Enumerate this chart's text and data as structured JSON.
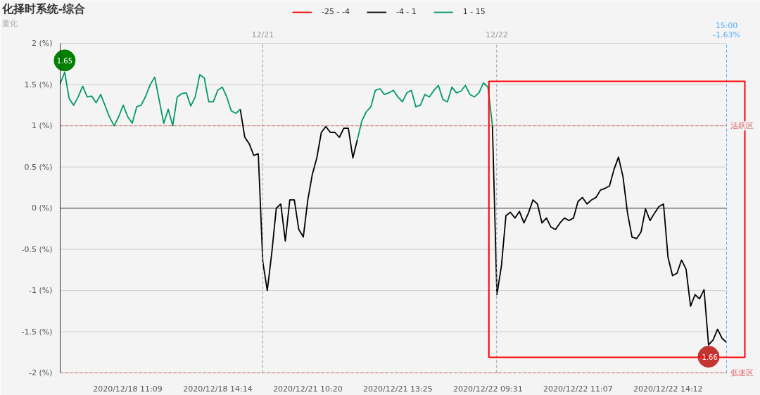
{
  "chart_data": {
    "type": "line",
    "title": "化择时系统-综合",
    "subtitle": "量化",
    "categories": [
      null,
      null,
      null,
      null,
      null,
      null,
      null,
      null,
      null,
      null,
      null,
      null,
      null,
      null,
      null,
      "2020/12/18 11:09",
      null,
      null,
      null,
      null,
      null,
      null,
      null,
      null,
      null,
      null,
      null,
      null,
      null,
      null,
      null,
      null,
      null,
      null,
      null,
      "2020/12/18 14:14",
      null,
      null,
      null,
      null,
      null,
      null,
      null,
      null,
      null,
      null,
      null,
      null,
      null,
      null,
      null,
      null,
      null,
      null,
      null,
      "2020/12/21 10:20",
      null,
      null,
      null,
      null,
      null,
      null,
      null,
      null,
      null,
      null,
      null,
      null,
      null,
      null,
      null,
      null,
      null,
      null,
      null,
      "2020/12/21 13:25",
      null,
      null,
      null,
      null,
      null,
      null,
      null,
      null,
      null,
      null,
      null,
      null,
      null,
      null,
      null,
      null,
      null,
      null,
      null,
      "2020/12/22 09:31",
      null,
      null,
      null,
      null,
      null,
      null,
      null,
      null,
      null,
      null,
      null,
      null,
      null,
      null,
      null,
      null,
      null,
      null,
      null,
      "2020/12/22 11:07",
      null,
      null,
      null,
      null,
      null,
      null,
      null,
      null,
      null,
      null,
      null,
      null,
      null,
      null,
      null,
      null,
      null,
      null,
      null,
      "2020/12/22 14:12",
      null,
      null,
      null,
      null,
      null,
      null,
      null,
      null,
      null,
      null,
      null,
      null,
      null
    ],
    "ylim": [
      -2,
      2
    ],
    "yticks": [
      {
        "value": -2,
        "label": "-2 (%)"
      },
      {
        "value": -1.5,
        "label": "-1.5 (%)"
      },
      {
        "value": -1,
        "label": "-1 (%)"
      },
      {
        "value": -0.5,
        "label": "-0.5 (%)"
      },
      {
        "value": 0,
        "label": "0 (%)"
      },
      {
        "value": 0.5,
        "label": "0.5 (%)"
      },
      {
        "value": 1,
        "label": "1 (%)"
      },
      {
        "value": 1.5,
        "label": "1.5 (%)"
      },
      {
        "value": 2,
        "label": "2 (%)"
      }
    ],
    "grid": "y",
    "legend": "top",
    "line_style": "solid",
    "series": [
      {
        "name": "-25 - -4",
        "color": "#ff0000",
        "values": [
          null,
          null,
          null,
          null,
          null,
          null,
          null,
          null,
          null,
          null,
          null,
          null,
          null,
          null,
          null,
          null,
          null,
          null,
          null,
          null,
          null,
          null,
          null,
          null,
          null,
          null,
          null,
          null,
          null,
          null,
          null,
          null,
          null,
          null,
          null,
          null,
          null,
          null,
          null,
          null,
          null,
          null,
          null,
          null,
          null,
          null,
          null,
          null,
          null,
          null,
          null,
          null,
          null,
          null,
          null,
          null,
          null,
          null,
          null,
          null,
          null,
          null,
          null,
          null,
          null,
          null,
          null,
          null,
          null,
          null,
          null,
          null,
          null,
          null,
          null,
          null,
          null,
          null,
          null,
          null,
          null,
          null,
          null,
          null,
          null,
          null,
          null,
          null,
          null,
          null,
          null,
          null,
          null,
          null,
          null,
          null,
          null,
          null,
          null,
          null,
          null,
          null,
          null,
          null,
          null,
          null,
          null,
          null,
          null,
          null,
          null,
          null,
          null,
          null,
          null,
          null,
          null,
          null,
          null,
          null,
          null,
          null,
          null,
          null,
          null,
          null,
          null,
          null,
          null,
          null,
          null,
          null,
          null,
          null,
          null,
          null,
          null,
          null,
          null,
          null,
          null,
          null,
          null,
          null,
          null,
          null,
          null,
          null,
          null
        ]
      },
      {
        "name": "-4 - 1",
        "color": "#000000",
        "values": [
          null,
          null,
          null,
          null,
          null,
          null,
          null,
          null,
          null,
          null,
          null,
          null,
          null,
          null,
          null,
          null,
          null,
          null,
          null,
          null,
          null,
          null,
          null,
          null,
          null,
          null,
          null,
          null,
          null,
          null,
          null,
          null,
          null,
          null,
          null,
          null,
          null,
          null,
          null,
          null,
          1.2,
          0.86,
          0.78,
          0.64,
          0.66,
          -0.65,
          -1.0,
          -0.54,
          0.0,
          0.05,
          -0.4,
          0.1,
          0.1,
          -0.26,
          -0.35,
          0.1,
          0.41,
          0.61,
          0.92,
          0.99,
          0.92,
          0.92,
          0.86,
          0.97,
          0.97,
          0.61,
          0.83,
          null,
          null,
          null,
          null,
          null,
          null,
          null,
          null,
          null,
          null,
          null,
          null,
          null,
          null,
          null,
          null,
          null,
          null,
          null,
          null,
          null,
          null,
          null,
          null,
          null,
          null,
          null,
          null,
          null,
          1.0,
          -1.05,
          -0.7,
          -0.09,
          -0.05,
          -0.12,
          -0.04,
          -0.18,
          -0.06,
          0.1,
          0.05,
          -0.18,
          -0.12,
          -0.23,
          -0.26,
          -0.18,
          -0.12,
          -0.15,
          -0.12,
          0.08,
          0.13,
          0.05,
          0.1,
          0.13,
          0.22,
          0.24,
          0.27,
          0.47,
          0.62,
          0.38,
          -0.06,
          -0.35,
          -0.37,
          -0.29,
          -0.01,
          -0.15,
          -0.06,
          0.02,
          0.05,
          -0.6,
          -0.82,
          -0.79,
          -0.63,
          -0.74,
          -1.19,
          -1.05,
          -1.1,
          -0.99,
          -1.66,
          -1.6,
          -1.47,
          -1.58,
          -1.63
        ]
      },
      {
        "name": "1 - 15",
        "color": "#009966",
        "values": [
          1.51,
          1.65,
          1.33,
          1.25,
          1.35,
          1.48,
          1.35,
          1.36,
          1.28,
          1.38,
          1.24,
          1.1,
          1.0,
          1.11,
          1.25,
          1.11,
          1.03,
          1.23,
          1.25,
          1.36,
          1.5,
          1.59,
          1.31,
          1.03,
          1.2,
          1.0,
          1.35,
          1.39,
          1.4,
          1.24,
          1.35,
          1.62,
          1.58,
          1.29,
          1.29,
          1.43,
          1.47,
          1.35,
          1.18,
          1.15,
          1.2,
          null,
          null,
          null,
          null,
          null,
          null,
          null,
          null,
          null,
          null,
          null,
          null,
          null,
          null,
          null,
          null,
          null,
          null,
          null,
          null,
          null,
          null,
          null,
          null,
          null,
          0.83,
          1.06,
          1.17,
          1.23,
          1.43,
          1.45,
          1.38,
          1.4,
          1.43,
          1.35,
          1.29,
          1.4,
          1.43,
          1.23,
          1.25,
          1.38,
          1.35,
          1.43,
          1.49,
          1.32,
          1.29,
          1.47,
          1.4,
          1.42,
          1.49,
          1.38,
          1.35,
          1.4,
          1.52,
          1.47,
          1.0,
          null,
          null,
          null,
          null,
          null,
          null,
          null,
          null,
          null,
          null,
          null,
          null,
          null,
          null,
          null,
          null,
          null,
          null,
          null,
          null,
          null,
          null,
          null,
          null,
          null,
          null,
          null,
          null,
          null,
          null,
          null,
          null,
          null,
          null,
          null,
          null,
          null,
          null,
          null,
          null,
          null,
          null,
          null,
          null,
          null,
          null,
          null,
          null,
          null,
          null,
          null,
          null
        ]
      }
    ],
    "annotations": [
      {
        "text": "1.65",
        "y": 1.65
      },
      {
        "text": "-1.66",
        "y": -1.66
      },
      "12/21",
      "12/22",
      "15:00\n-1.63%"
    ],
    "ref_lines": [
      {
        "axis": "y",
        "value": 1,
        "label": "活跃区",
        "color": "#e06666",
        "line_style": "dashed"
      },
      {
        "axis": "y",
        "value": -2,
        "label": "低迷区",
        "color": "#e06666",
        "line_style": "dashed"
      }
    ]
  }
}
